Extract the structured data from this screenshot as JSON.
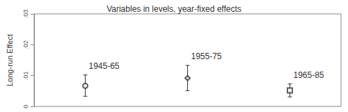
{
  "chart_data": {
    "type": "scatter",
    "title": "Variables in levels, year-fixed effects",
    "y_label": "Long-run Effect",
    "categories": [
      null,
      null,
      null
    ],
    "series": [
      {
        "name": "1945-65",
        "marker": "circle",
        "color": "#333333",
        "values": [
          0.0067,
          null,
          null
        ],
        "ci_low": [
          0.0033,
          null,
          null
        ],
        "ci_high": [
          0.0102,
          null,
          null
        ]
      },
      {
        "name": "1955-75",
        "marker": "diamond",
        "color": "#333333",
        "values": [
          null,
          0.0092,
          null
        ],
        "ci_low": [
          null,
          0.0051,
          null
        ],
        "ci_high": [
          null,
          0.0133,
          null
        ]
      },
      {
        "name": "1965-85",
        "marker": "square",
        "color": "#333333",
        "values": [
          null,
          null,
          0.0052
        ],
        "ci_low": [
          null,
          null,
          0.0031
        ],
        "ci_high": [
          null,
          null,
          0.0073
        ]
      }
    ],
    "ylim": [
      0,
      0.03
    ],
    "yticks": [
      0,
      {
        "value": 0.01,
        "label": ".01"
      },
      {
        "value": 0.02,
        "label": ".02"
      },
      {
        "value": 0.03,
        "label": ".03"
      }
    ],
    "tick_labels": "y"
  }
}
